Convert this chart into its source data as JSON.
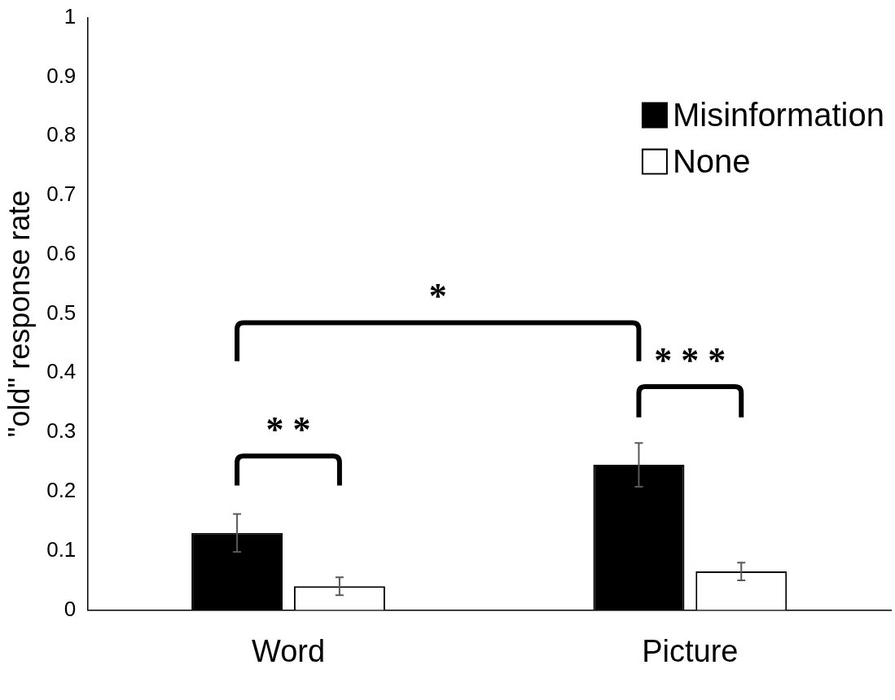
{
  "chart_data": {
    "type": "bar",
    "ylabel": "\"old\" response rate",
    "categories": [
      "Word",
      "Picture"
    ],
    "series": [
      {
        "name": "Misinformation",
        "color": "#000000",
        "values": [
          0.13,
          0.245
        ],
        "errors": [
          0.032,
          0.037
        ]
      },
      {
        "name": "None",
        "color": "#ffffff",
        "values": [
          0.04,
          0.065
        ],
        "errors": [
          0.015,
          0.015
        ]
      }
    ],
    "ylim": [
      0,
      1
    ],
    "yticks": [
      0,
      0.1,
      0.2,
      0.3,
      0.4,
      0.5,
      0.6,
      0.7,
      0.8,
      0.9,
      1
    ],
    "grid": false,
    "legend": "top right",
    "annotations": [
      "* *",
      "*",
      "* * *"
    ]
  }
}
